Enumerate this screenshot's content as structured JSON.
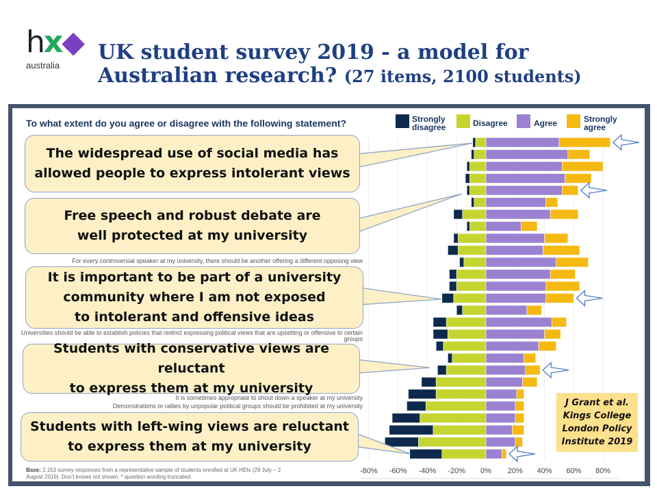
{
  "logo": {
    "mark": "hx",
    "word": "australia"
  },
  "title": {
    "main_1": "UK student survey 2019 - a model for",
    "main_2": "Australian research?",
    "sub": "(27 items, 2100 students)"
  },
  "chart_data": {
    "type": "bar",
    "stacked": "diverging",
    "title": "To what extent do you agree or disagree with the following statement?",
    "xlim": [
      -80,
      80
    ],
    "x_ticks": [
      "-80%",
      "-60%",
      "-40%",
      "-20%",
      "0%",
      "20%",
      "40%",
      "60%",
      "80%"
    ],
    "legend": [
      "Strongly disagree",
      "Disagree",
      "Agree",
      "Strongly agree"
    ],
    "colors": {
      "strongly_disagree": "#0d2a4e",
      "disagree": "#c5d530",
      "agree": "#9b82d1",
      "strongly_agree": "#f5b912"
    },
    "visible_labels": [
      {
        "row": 11,
        "text": "For every controversial speaker at my university, there should be another offering a different opposing view"
      },
      {
        "row": 17,
        "text": "Universities should be able to establish policies that restrict expressing political views that are upsetting or offensive to certain groups"
      },
      {
        "row": 22,
        "text": "It is sometimes appropriate to shout down a speaker at my university"
      },
      {
        "row": 23,
        "text": "Demonstrations or rallies by unpopular political groups should be prohibited at my university"
      }
    ],
    "series": [
      {
        "name": "Strongly disagree",
        "values": [
          2,
          2,
          2,
          3,
          2,
          2,
          6,
          2,
          3,
          7,
          3,
          5,
          5,
          8,
          4,
          9,
          10,
          5,
          3,
          6,
          10,
          19,
          13,
          19,
          30,
          23,
          22
        ]
      },
      {
        "name": "Disagree",
        "values": [
          7,
          8,
          11,
          11,
          11,
          8,
          16,
          11,
          19,
          19,
          15,
          20,
          20,
          22,
          16,
          27,
          26,
          29,
          23,
          27,
          34,
          34,
          41,
          45,
          36,
          46,
          30
        ]
      },
      {
        "name": "Agree",
        "values": [
          50,
          56,
          52,
          54,
          52,
          41,
          44,
          24,
          40,
          39,
          48,
          44,
          41,
          41,
          28,
          45,
          40,
          36,
          26,
          27,
          25,
          21,
          20,
          20,
          18,
          20,
          11
        ]
      },
      {
        "name": "Strongly agree",
        "values": [
          35,
          15,
          28,
          18,
          11,
          8,
          19,
          11,
          16,
          25,
          22,
          17,
          23,
          19,
          10,
          10,
          11,
          12,
          8,
          10,
          10,
          5,
          6,
          6,
          8,
          5,
          3
        ]
      }
    ],
    "highlighted_rows": [
      1,
      5,
      14,
      20,
      27
    ],
    "base_note_bold": "Base:",
    "base_note": "2,153 survey responses from a representative sample of students enrolled at UK HEIs (29 July – 2 August 2019). Don't knows not shown, * question wording truncated."
  },
  "callouts": [
    "The widespread use of social media has\nallowed people to express intolerant views",
    "Free speech and robust debate are\nwell protected at my university",
    "It is important to be part of a university\ncommunity where I am not exposed\nto intolerant and offensive ideas",
    "Students with conservative views are reluctant\nto express them at my university",
    "Students with left-wing views are reluctant\nto express them at my university"
  ],
  "citation": "J Grant et al.\nKings College\nLondon Policy\nInstitute 2019"
}
